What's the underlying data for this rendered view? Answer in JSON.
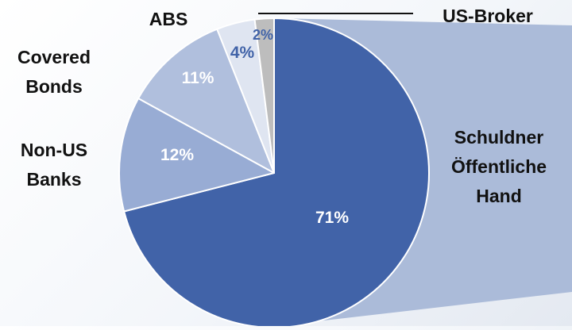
{
  "chart_data": {
    "type": "pie",
    "title": "",
    "slices": [
      {
        "label": "Schuldner Öffentliche Hand",
        "value": 71,
        "value_label": "71%",
        "color": "#4163a8",
        "label_color": "#ffffff"
      },
      {
        "label": "Non-US Banks",
        "value": 12,
        "value_label": "12%",
        "color": "#98acd4",
        "label_color": "#ffffff"
      },
      {
        "label": "Covered Bonds",
        "value": 11,
        "value_label": "11%",
        "color": "#b0bfdd",
        "label_color": "#ffffff"
      },
      {
        "label": "ABS",
        "value": 4,
        "value_label": "4%",
        "color": "#dfe5f1",
        "label_color": "#4163a8"
      },
      {
        "label": "US-Broker",
        "value": 2,
        "value_label": "2%",
        "color": "#bdbdbd",
        "label_color": "#4163a8"
      }
    ],
    "start_angle_deg": 0,
    "direction": "clockwise",
    "category_labels": {
      "schuldner": [
        "Schuldner",
        "Öffentliche",
        "Hand"
      ],
      "non_us_banks": [
        "Non-US",
        "Banks"
      ],
      "covered_bonds": [
        "Covered",
        "Bonds"
      ],
      "abs": [
        "ABS"
      ],
      "us_broker": [
        "US-Broker"
      ]
    },
    "colors": {
      "callout_band": "#abbbd9",
      "label_text": "#111111",
      "leader_line": "#111111"
    }
  }
}
